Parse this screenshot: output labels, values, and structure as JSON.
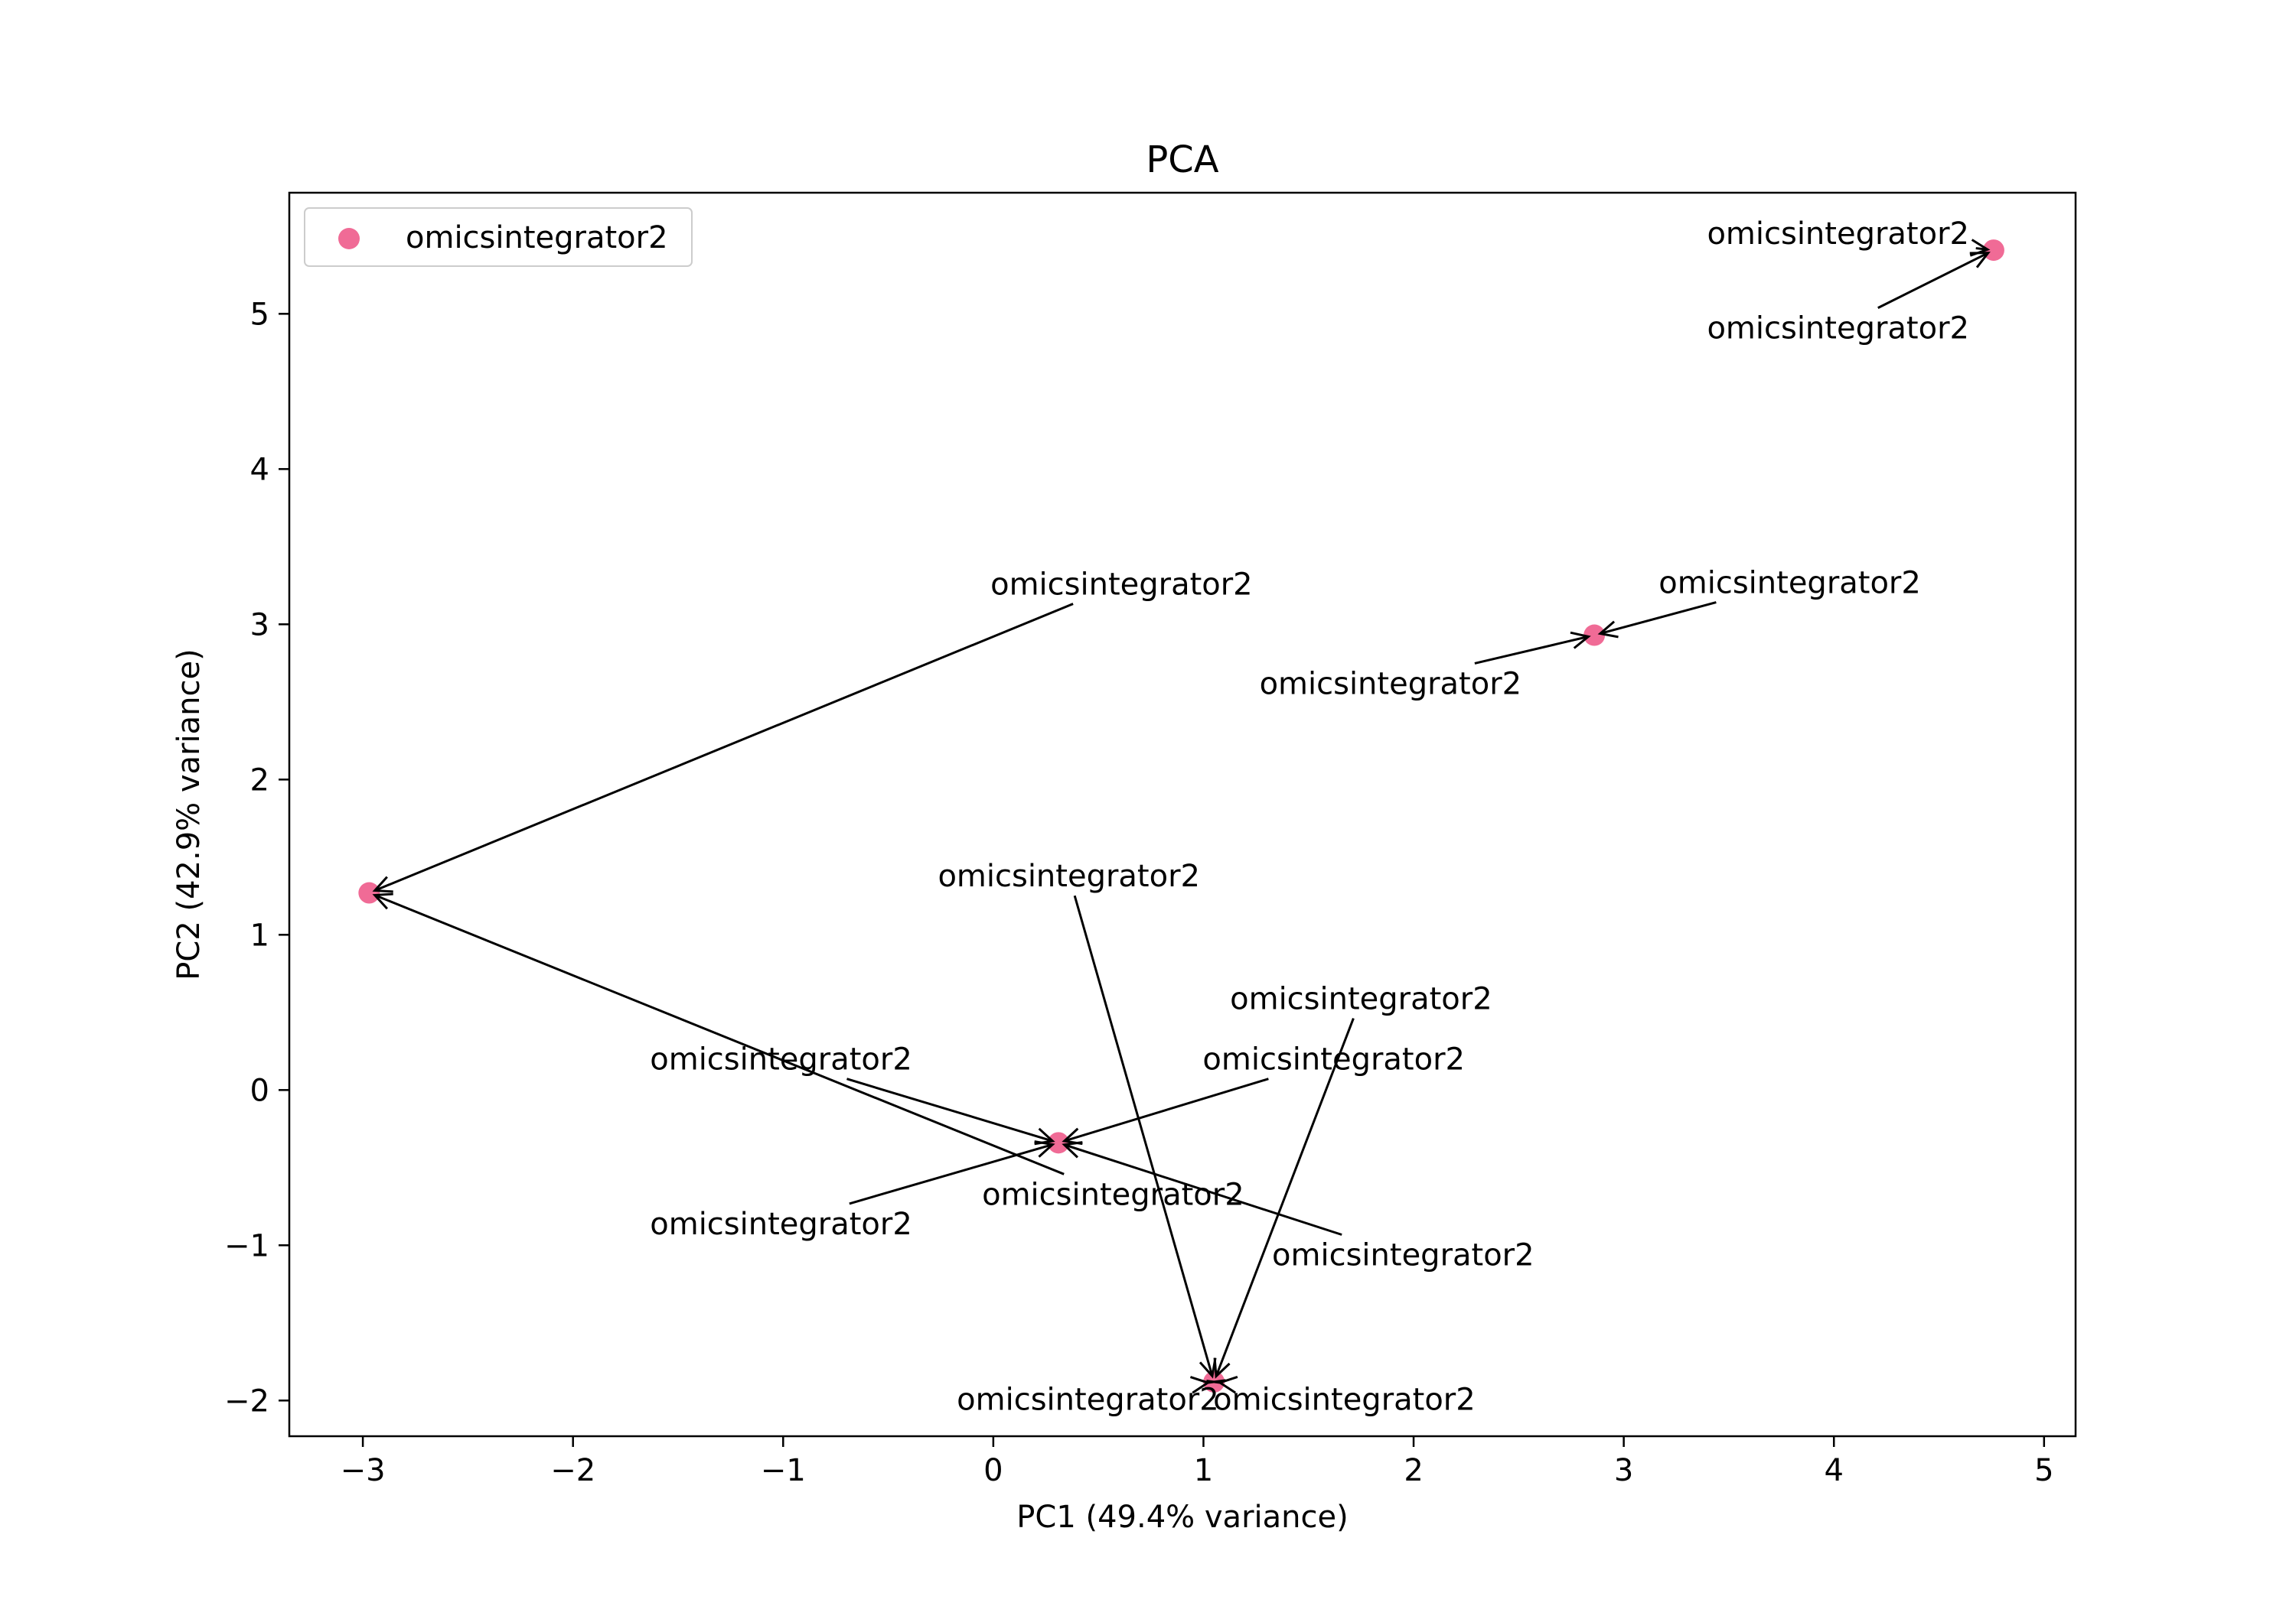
{
  "chart_data": {
    "type": "scatter",
    "title": "PCA",
    "xlabel": "PC1 (49.4% variance)",
    "ylabel": "PC2 (42.9% variance)",
    "xlim": [
      -3.35,
      5.15
    ],
    "ylim": [
      -2.23,
      5.78
    ],
    "xticks": [
      -3,
      -2,
      -1,
      0,
      1,
      2,
      3,
      4,
      5
    ],
    "yticks": [
      -2,
      -1,
      0,
      1,
      2,
      3,
      4,
      5
    ],
    "grid": false,
    "legend_position": "upper-left",
    "series": [
      {
        "name": "omicsintegrator2",
        "color": "#f06b96",
        "points": [
          {
            "x": -2.97,
            "y": 1.27
          },
          {
            "x": 0.31,
            "y": -0.34
          },
          {
            "x": 1.05,
            "y": -1.88
          },
          {
            "x": 2.86,
            "y": 2.93
          },
          {
            "x": 4.76,
            "y": 5.41
          }
        ]
      }
    ],
    "annotations": [
      {
        "text": "omicsintegrator2",
        "text_x": 4.02,
        "text_y": 5.52,
        "point_x": 4.76,
        "point_y": 5.41
      },
      {
        "text": "omicsintegrator2",
        "text_x": 4.02,
        "text_y": 4.91,
        "point_x": 4.76,
        "point_y": 5.41
      },
      {
        "text": "omicsintegrator2",
        "text_x": 3.79,
        "text_y": 3.27,
        "point_x": 2.86,
        "point_y": 2.93
      },
      {
        "text": "omicsintegrator2",
        "text_x": 1.89,
        "text_y": 2.62,
        "point_x": 2.86,
        "point_y": 2.93
      },
      {
        "text": "omicsintegrator2",
        "text_x": 0.61,
        "text_y": 3.26,
        "point_x": -2.97,
        "point_y": 1.27
      },
      {
        "text": "omicsintegrator2",
        "text_x": 0.57,
        "text_y": -0.67,
        "point_x": -2.97,
        "point_y": 1.27
      },
      {
        "text": "omicsintegrator2",
        "text_x": 0.36,
        "text_y": 1.38,
        "point_x": 1.05,
        "point_y": -1.88
      },
      {
        "text": "omicsintegrator2",
        "text_x": 1.75,
        "text_y": 0.59,
        "point_x": 1.05,
        "point_y": -1.88
      },
      {
        "text": "omicsintegrator2",
        "text_x": 0.45,
        "text_y": -1.99,
        "point_x": 1.05,
        "point_y": -1.88
      },
      {
        "text": "omicsintegrator2",
        "text_x": 1.67,
        "text_y": -1.99,
        "point_x": 1.05,
        "point_y": -1.88
      },
      {
        "text": "omicsintegrator2",
        "text_x": -1.01,
        "text_y": 0.2,
        "point_x": 0.31,
        "point_y": -0.34
      },
      {
        "text": "omicsintegrator2",
        "text_x": 1.62,
        "text_y": 0.2,
        "point_x": 0.31,
        "point_y": -0.34
      },
      {
        "text": "omicsintegrator2",
        "text_x": -1.01,
        "text_y": -0.86,
        "point_x": 0.31,
        "point_y": -0.34
      },
      {
        "text": "omicsintegrator2",
        "text_x": 1.95,
        "text_y": -1.06,
        "point_x": 0.31,
        "point_y": -0.34
      }
    ]
  }
}
